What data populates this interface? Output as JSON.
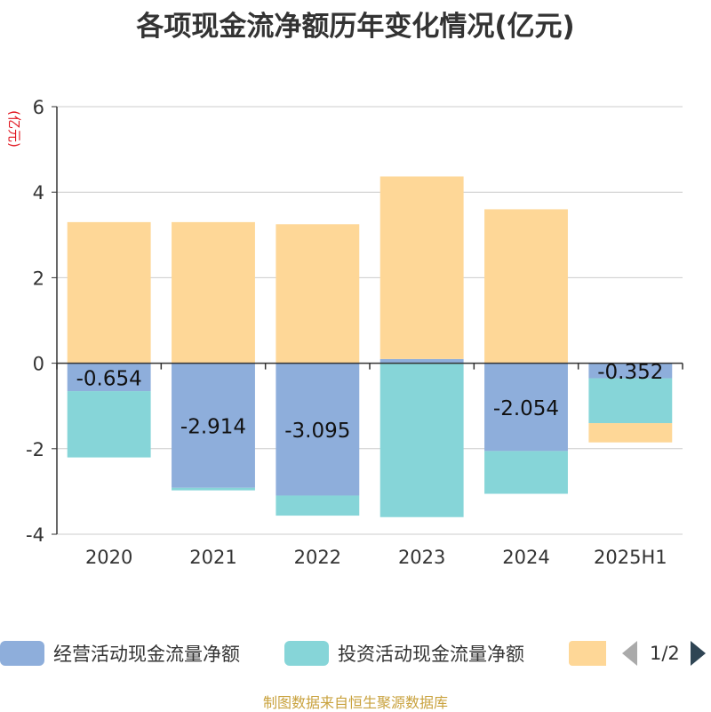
{
  "chart_data": {
    "type": "bar",
    "title": "各项现金流净额历年变化情况(亿元)",
    "ylabel": "(亿元)",
    "ylim": [
      -4,
      6
    ],
    "yticks": [
      -4,
      -2,
      0,
      2,
      4,
      6
    ],
    "grid": true,
    "categories": [
      "2020",
      "2021",
      "2022",
      "2023",
      "2024",
      "2025H1"
    ],
    "series": [
      {
        "name": "经营活动现金流量净额",
        "color": "#8eaedb",
        "values": [
          -0.654,
          -2.914,
          -3.095,
          0.098,
          -2.054,
          -0.352
        ],
        "labels": [
          "-0.654",
          "-2.914",
          "-3.095",
          "",
          "-2.054",
          "-0.352"
        ]
      },
      {
        "name": "投资活动现金流量净额",
        "color": "#86d5d8",
        "values": [
          -1.55,
          -0.06,
          -0.47,
          -3.6,
          -1.0,
          -1.05
        ],
        "labels": [
          "",
          "",
          "",
          "",
          "",
          ""
        ]
      },
      {
        "name": "",
        "color": "#fed797",
        "values": [
          3.3,
          3.3,
          3.25,
          4.27,
          3.6,
          -0.45
        ],
        "labels": [
          "",
          "",
          "",
          "",
          "",
          ""
        ]
      }
    ],
    "legend_position": "bottom"
  },
  "legend": {
    "items": [
      "经营活动现金流量净额",
      "投资活动现金流量净额",
      ""
    ],
    "page": "1/2"
  },
  "source": "制图数据来自恒生聚源数据库"
}
